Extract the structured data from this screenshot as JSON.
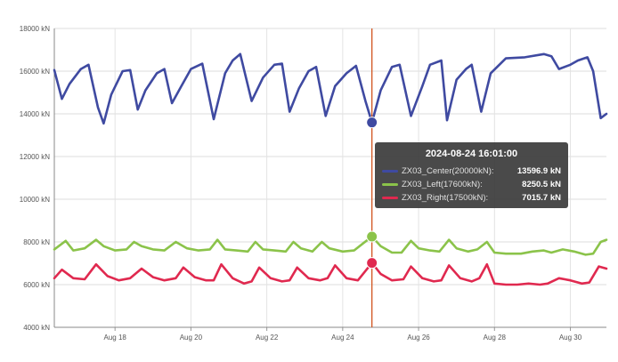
{
  "chart_data": {
    "type": "line",
    "y_axis": {
      "min": 4000,
      "max": 18000,
      "ticks": [
        4000,
        6000,
        8000,
        10000,
        12000,
        14000,
        16000,
        18000
      ],
      "tick_labels": [
        "4000 kN",
        "6000 kN",
        "8000 kN",
        "10000 kN",
        "12000 kN",
        "14000 kN",
        "16000 kN",
        "18000 kN"
      ]
    },
    "x_axis": {
      "min": 16.4,
      "max": 30.95,
      "ticks": [
        18,
        20,
        22,
        24,
        26,
        28,
        30
      ],
      "tick_labels": [
        "Aug 18",
        "Aug 20",
        "Aug 22",
        "Aug 24",
        "Aug 26",
        "Aug 28",
        "Aug 30"
      ]
    },
    "grid": true,
    "series": [
      {
        "name": "ZX03_Center(20000kN)",
        "color": "#3f4aa1",
        "points": [
          [
            16.4,
            16050
          ],
          [
            16.6,
            14700
          ],
          [
            16.8,
            15400
          ],
          [
            17.1,
            16100
          ],
          [
            17.3,
            16300
          ],
          [
            17.55,
            14300
          ],
          [
            17.7,
            13550
          ],
          [
            17.9,
            14900
          ],
          [
            18.2,
            16000
          ],
          [
            18.4,
            16050
          ],
          [
            18.6,
            14200
          ],
          [
            18.8,
            15100
          ],
          [
            19.1,
            15900
          ],
          [
            19.3,
            16100
          ],
          [
            19.5,
            14500
          ],
          [
            19.75,
            15300
          ],
          [
            20.0,
            16100
          ],
          [
            20.3,
            16350
          ],
          [
            20.6,
            13750
          ],
          [
            20.9,
            15900
          ],
          [
            21.1,
            16500
          ],
          [
            21.3,
            16800
          ],
          [
            21.6,
            14600
          ],
          [
            21.9,
            15700
          ],
          [
            22.2,
            16300
          ],
          [
            22.4,
            16350
          ],
          [
            22.6,
            14100
          ],
          [
            22.85,
            15200
          ],
          [
            23.1,
            16000
          ],
          [
            23.3,
            16200
          ],
          [
            23.55,
            13900
          ],
          [
            23.8,
            15300
          ],
          [
            24.1,
            15900
          ],
          [
            24.35,
            16250
          ],
          [
            24.6,
            14600
          ],
          [
            24.77,
            13597
          ],
          [
            25.0,
            15100
          ],
          [
            25.3,
            16200
          ],
          [
            25.5,
            16300
          ],
          [
            25.8,
            13900
          ],
          [
            26.1,
            15300
          ],
          [
            26.3,
            16300
          ],
          [
            26.6,
            16500
          ],
          [
            26.75,
            13700
          ],
          [
            27.0,
            15600
          ],
          [
            27.25,
            16100
          ],
          [
            27.4,
            16300
          ],
          [
            27.65,
            14100
          ],
          [
            27.9,
            15900
          ],
          [
            28.3,
            16600
          ],
          [
            28.8,
            16650
          ],
          [
            29.3,
            16800
          ],
          [
            29.5,
            16700
          ],
          [
            29.7,
            16100
          ],
          [
            30.0,
            16300
          ],
          [
            30.2,
            16500
          ],
          [
            30.45,
            16650
          ],
          [
            30.6,
            16000
          ],
          [
            30.8,
            13800
          ],
          [
            30.95,
            14000
          ]
        ]
      },
      {
        "name": "ZX03_Left(17600kN)",
        "color": "#8bc34a",
        "points": [
          [
            16.4,
            7650
          ],
          [
            16.7,
            8050
          ],
          [
            16.9,
            7600
          ],
          [
            17.2,
            7700
          ],
          [
            17.5,
            8100
          ],
          [
            17.7,
            7800
          ],
          [
            18.0,
            7600
          ],
          [
            18.3,
            7650
          ],
          [
            18.5,
            8000
          ],
          [
            18.7,
            7800
          ],
          [
            19.0,
            7650
          ],
          [
            19.3,
            7600
          ],
          [
            19.6,
            8000
          ],
          [
            19.9,
            7700
          ],
          [
            20.2,
            7600
          ],
          [
            20.5,
            7650
          ],
          [
            20.7,
            8100
          ],
          [
            20.9,
            7650
          ],
          [
            21.2,
            7600
          ],
          [
            21.5,
            7550
          ],
          [
            21.7,
            8000
          ],
          [
            21.9,
            7650
          ],
          [
            22.2,
            7600
          ],
          [
            22.5,
            7550
          ],
          [
            22.7,
            8000
          ],
          [
            22.9,
            7700
          ],
          [
            23.2,
            7550
          ],
          [
            23.45,
            8000
          ],
          [
            23.65,
            7700
          ],
          [
            24.0,
            7550
          ],
          [
            24.3,
            7600
          ],
          [
            24.55,
            7950
          ],
          [
            24.77,
            8251
          ],
          [
            25.0,
            7800
          ],
          [
            25.3,
            7500
          ],
          [
            25.55,
            7500
          ],
          [
            25.8,
            8050
          ],
          [
            26.0,
            7700
          ],
          [
            26.3,
            7600
          ],
          [
            26.55,
            7550
          ],
          [
            26.8,
            8100
          ],
          [
            27.0,
            7700
          ],
          [
            27.3,
            7550
          ],
          [
            27.55,
            7650
          ],
          [
            27.8,
            8000
          ],
          [
            28.0,
            7500
          ],
          [
            28.3,
            7450
          ],
          [
            28.7,
            7450
          ],
          [
            29.0,
            7550
          ],
          [
            29.3,
            7600
          ],
          [
            29.5,
            7500
          ],
          [
            29.8,
            7650
          ],
          [
            30.1,
            7550
          ],
          [
            30.4,
            7400
          ],
          [
            30.6,
            7450
          ],
          [
            30.8,
            8000
          ],
          [
            30.95,
            8100
          ]
        ]
      },
      {
        "name": "ZX03_Right(17500kN)",
        "color": "#e0294f",
        "points": [
          [
            16.4,
            6300
          ],
          [
            16.6,
            6700
          ],
          [
            16.9,
            6300
          ],
          [
            17.2,
            6250
          ],
          [
            17.5,
            6950
          ],
          [
            17.8,
            6400
          ],
          [
            18.1,
            6200
          ],
          [
            18.4,
            6300
          ],
          [
            18.7,
            6750
          ],
          [
            19.0,
            6350
          ],
          [
            19.3,
            6200
          ],
          [
            19.6,
            6300
          ],
          [
            19.8,
            6800
          ],
          [
            20.1,
            6350
          ],
          [
            20.4,
            6200
          ],
          [
            20.6,
            6200
          ],
          [
            20.8,
            6950
          ],
          [
            21.1,
            6300
          ],
          [
            21.4,
            6050
          ],
          [
            21.6,
            6150
          ],
          [
            21.8,
            6800
          ],
          [
            22.1,
            6300
          ],
          [
            22.4,
            6150
          ],
          [
            22.6,
            6200
          ],
          [
            22.8,
            6800
          ],
          [
            23.1,
            6300
          ],
          [
            23.4,
            6200
          ],
          [
            23.6,
            6300
          ],
          [
            23.8,
            6900
          ],
          [
            24.1,
            6300
          ],
          [
            24.4,
            6200
          ],
          [
            24.77,
            7016
          ],
          [
            25.0,
            6500
          ],
          [
            25.3,
            6200
          ],
          [
            25.6,
            6250
          ],
          [
            25.8,
            6850
          ],
          [
            26.1,
            6300
          ],
          [
            26.4,
            6150
          ],
          [
            26.6,
            6200
          ],
          [
            26.8,
            6900
          ],
          [
            27.1,
            6300
          ],
          [
            27.4,
            6150
          ],
          [
            27.6,
            6300
          ],
          [
            27.8,
            6950
          ],
          [
            28.0,
            6050
          ],
          [
            28.3,
            6000
          ],
          [
            28.6,
            6000
          ],
          [
            28.9,
            6050
          ],
          [
            29.2,
            6000
          ],
          [
            29.4,
            6050
          ],
          [
            29.7,
            6300
          ],
          [
            30.0,
            6200
          ],
          [
            30.3,
            6050
          ],
          [
            30.5,
            6100
          ],
          [
            30.75,
            6850
          ],
          [
            30.95,
            6750
          ]
        ]
      }
    ],
    "crosshair": {
      "x": 24.77
    },
    "tooltip": {
      "title": "2024-08-24 16:01:00",
      "rows": [
        {
          "name": "ZX03_Center(20000kN):",
          "value": "13596.9 kN",
          "color": "#3f4aa1",
          "y": 13596.9
        },
        {
          "name": "ZX03_Left(17600kN):",
          "value": "8250.5 kN",
          "color": "#8bc34a",
          "y": 8250.5
        },
        {
          "name": "ZX03_Right(17500kN):",
          "value": "7015.7 kN",
          "color": "#e0294f",
          "y": 7015.7
        }
      ]
    }
  }
}
